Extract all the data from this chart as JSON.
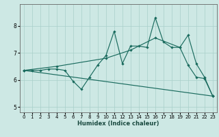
{
  "xlabel": "Humidex (Indice chaleur)",
  "bg_color": "#cde8e4",
  "grid_color": "#a8cfc9",
  "line_color": "#1a6b5e",
  "xlim": [
    -0.5,
    23.5
  ],
  "ylim": [
    4.8,
    8.8
  ],
  "xticks": [
    0,
    1,
    2,
    3,
    4,
    5,
    6,
    7,
    8,
    9,
    10,
    11,
    12,
    13,
    14,
    15,
    16,
    17,
    18,
    19,
    20,
    21,
    22,
    23
  ],
  "yticks": [
    5,
    6,
    7,
    8
  ],
  "series1_x": [
    0,
    1,
    2,
    3,
    4,
    5,
    6,
    7,
    8,
    9,
    10,
    11,
    12,
    13,
    14,
    15,
    16,
    17,
    18,
    19,
    20,
    21,
    22,
    23
  ],
  "series1_y": [
    6.35,
    6.35,
    6.35,
    6.4,
    6.4,
    6.35,
    5.95,
    5.65,
    6.1,
    6.55,
    6.9,
    7.8,
    6.6,
    7.25,
    7.25,
    7.2,
    8.3,
    7.4,
    7.2,
    7.2,
    6.55,
    6.1,
    6.05,
    5.4
  ],
  "series2_x": [
    0,
    23
  ],
  "series2_y": [
    6.35,
    5.4
  ],
  "series3_x": [
    0,
    4,
    10,
    13,
    16,
    19,
    20,
    21,
    22,
    23
  ],
  "series3_y": [
    6.35,
    6.5,
    6.8,
    7.1,
    7.55,
    7.2,
    7.65,
    6.6,
    6.1,
    5.4
  ]
}
